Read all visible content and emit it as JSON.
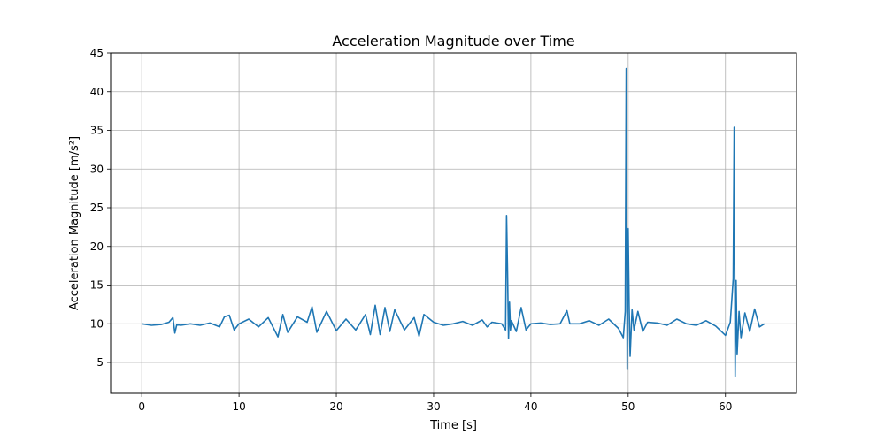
{
  "chart_data": {
    "type": "line",
    "title": "Acceleration Magnitude over Time",
    "xlabel": "Time [s]",
    "ylabel": "Acceleration Magnitude [m/s²]",
    "xlim": [
      -3.2,
      67.3
    ],
    "ylim": [
      1.0,
      45.0
    ],
    "xticks": [
      0,
      10,
      20,
      30,
      40,
      50,
      60
    ],
    "yticks": [
      5,
      10,
      15,
      20,
      25,
      30,
      35,
      40,
      45
    ],
    "xtick_labels": [
      "0",
      "10",
      "20",
      "30",
      "40",
      "50",
      "60"
    ],
    "ytick_labels": [
      "5",
      "10",
      "15",
      "20",
      "25",
      "30",
      "35",
      "40",
      "45"
    ],
    "grid": true,
    "legend": "none",
    "series_color": "#1f77b4",
    "series": [
      {
        "x": [
          0.0,
          1.0,
          2.0,
          2.8,
          3.2,
          3.4,
          3.6,
          4.0,
          5.0,
          6.0,
          7.0,
          8.0,
          8.5,
          9.0,
          9.5,
          10.0,
          11.0,
          12.0,
          13.0,
          14.0,
          14.5,
          15.0,
          16.0,
          17.0,
          17.5,
          18.0,
          19.0,
          20.0,
          21.0,
          22.0,
          23.0,
          23.5,
          24.0,
          24.5,
          25.0,
          25.5,
          26.0,
          27.0,
          28.0,
          28.5,
          29.0,
          30.0,
          31.0,
          32.0,
          33.0,
          34.0,
          35.0,
          35.5,
          36.0,
          37.0,
          37.4,
          37.5,
          37.6,
          37.7,
          37.8,
          37.9,
          38.0,
          38.5,
          39.0,
          39.5,
          40.0,
          41.0,
          42.0,
          43.0,
          43.7,
          44.0,
          45.0,
          46.0,
          47.0,
          48.0,
          49.0,
          49.5,
          49.7,
          49.8,
          49.9,
          50.0,
          50.1,
          50.2,
          50.4,
          50.6,
          51.0,
          51.5,
          52.0,
          53.0,
          54.0,
          55.0,
          56.0,
          57.0,
          58.0,
          59.0,
          60.0,
          60.5,
          60.8,
          60.9,
          61.0,
          61.1,
          61.2,
          61.4,
          61.6,
          62.0,
          62.5,
          63.0,
          63.5,
          64.0
        ],
        "y": [
          10.0,
          9.8,
          9.9,
          10.2,
          10.8,
          8.8,
          9.9,
          9.8,
          10.0,
          9.8,
          10.1,
          9.6,
          10.9,
          11.1,
          9.2,
          10.0,
          10.6,
          9.6,
          10.8,
          8.3,
          11.2,
          8.9,
          10.9,
          10.2,
          12.2,
          8.9,
          11.6,
          9.1,
          10.6,
          9.2,
          11.2,
          8.6,
          12.4,
          8.6,
          12.1,
          9.0,
          11.8,
          9.2,
          10.8,
          8.4,
          11.2,
          10.2,
          9.8,
          10.0,
          10.3,
          9.8,
          10.5,
          9.6,
          10.2,
          10.0,
          9.2,
          24.0,
          16.8,
          8.1,
          12.8,
          9.2,
          10.4,
          9.0,
          12.1,
          9.2,
          10.0,
          10.1,
          9.9,
          10.0,
          11.7,
          10.0,
          10.0,
          10.4,
          9.8,
          10.6,
          9.4,
          8.2,
          11.6,
          43.0,
          4.2,
          22.3,
          12.4,
          5.8,
          11.8,
          9.2,
          11.6,
          9.0,
          10.2,
          10.1,
          9.8,
          10.6,
          10.0,
          9.8,
          10.4,
          9.7,
          8.5,
          10.2,
          15.8,
          35.4,
          3.2,
          15.6,
          6.0,
          11.6,
          8.2,
          11.4,
          9.0,
          11.9,
          9.6,
          10.0
        ]
      }
    ]
  }
}
